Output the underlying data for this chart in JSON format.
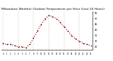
{
  "title": "Milwaukee Weather Outdoor Temperature per Hour (Last 24 Hours)",
  "hours": [
    0,
    1,
    2,
    3,
    4,
    5,
    6,
    7,
    8,
    9,
    10,
    11,
    12,
    13,
    14,
    15,
    16,
    17,
    18,
    19,
    20,
    21,
    22,
    23
  ],
  "temps": [
    28,
    27,
    27,
    26,
    25,
    25,
    24,
    27,
    33,
    39,
    45,
    50,
    53,
    52,
    50,
    47,
    43,
    39,
    35,
    32,
    30,
    28,
    27,
    26
  ],
  "line_color": "#dd0000",
  "marker_color": "#000000",
  "bg_color": "#ffffff",
  "grid_color": "#999999",
  "grid_positions": [
    0,
    4,
    8,
    12,
    16,
    20
  ],
  "ylim": [
    22,
    57
  ],
  "yticks": [
    25,
    30,
    35,
    40,
    45,
    50,
    55
  ],
  "xtick_every": 1,
  "title_fontsize": 3.2,
  "tick_fontsize": 2.5
}
